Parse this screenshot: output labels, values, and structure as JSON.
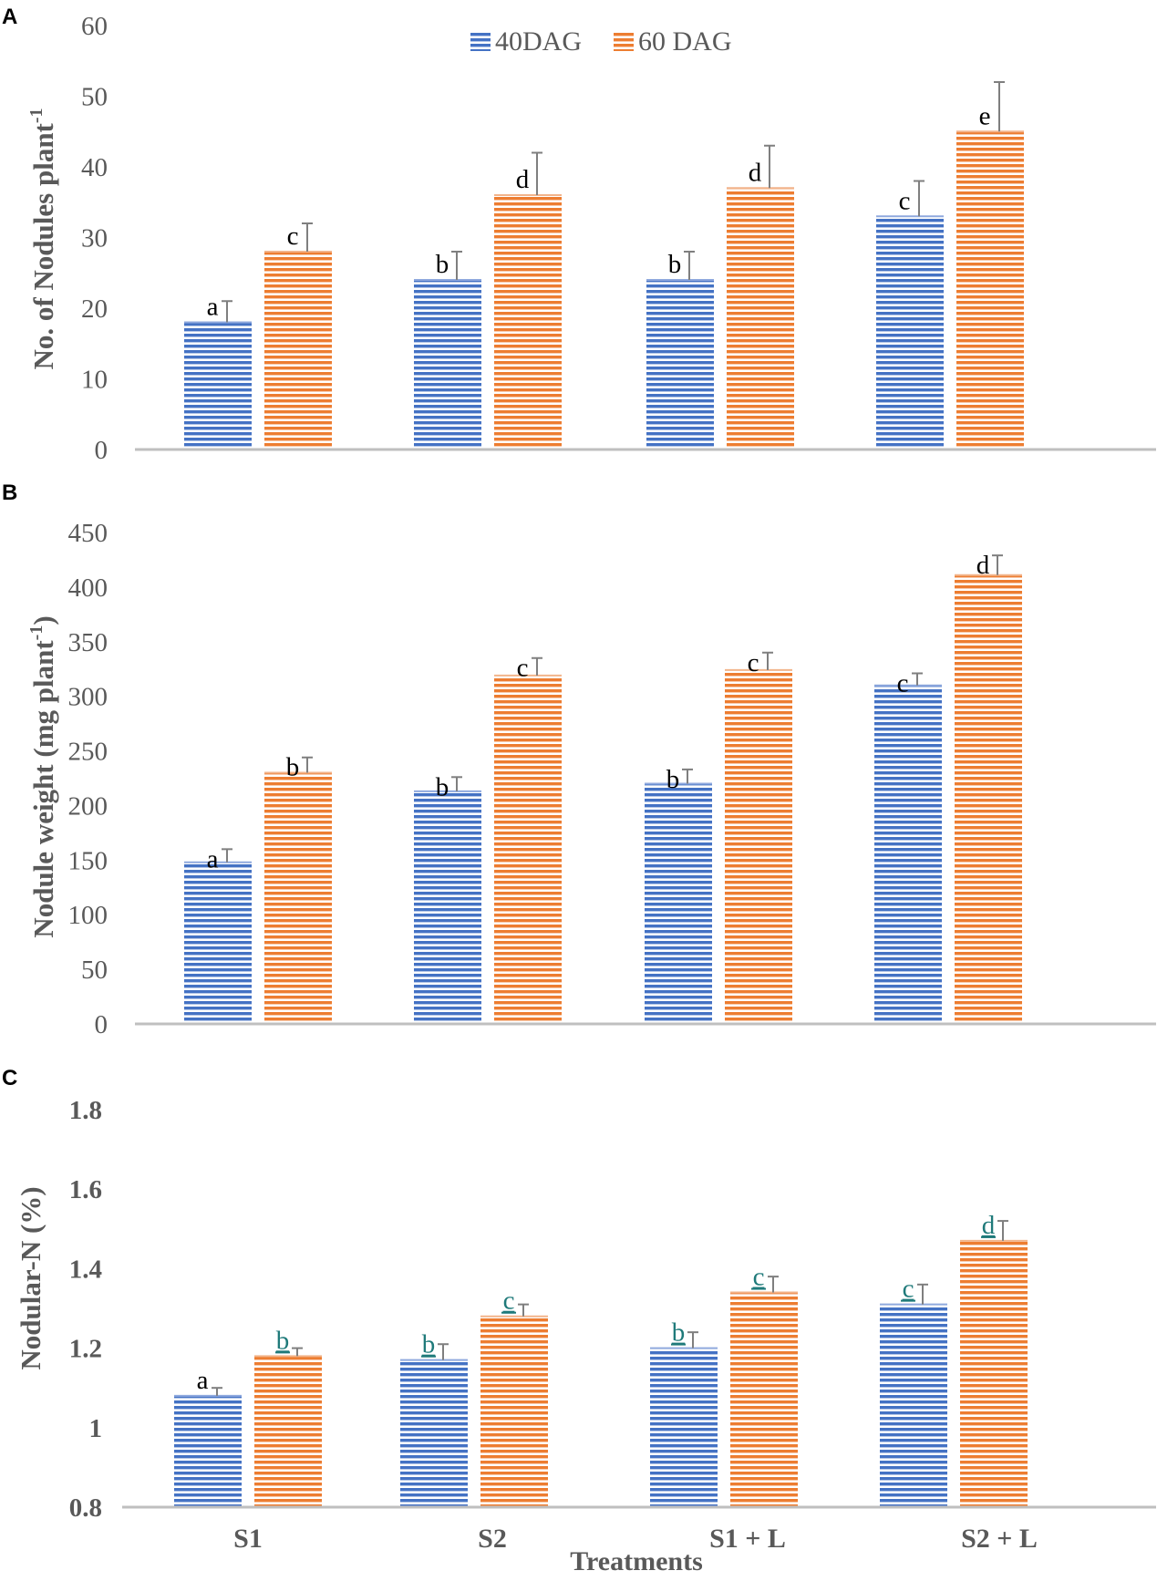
{
  "colors": {
    "series_40": "#4472C4",
    "series_60": "#ED7D31",
    "axis": "#BFBFBF",
    "text": "#595959",
    "sig_teal": "#1F7A7A"
  },
  "legend": {
    "items": [
      "40DAG",
      "60 DAG"
    ]
  },
  "x_title": "Treatments",
  "chart_data": [
    {
      "panel": "A",
      "type": "bar",
      "title": "",
      "xlabel": "",
      "ylabel_main": "No. of Nodules plant",
      "ylabel_sup": "-1",
      "ylabel_tail": "",
      "categories": [
        "S1",
        "S2",
        "S1 + L",
        "S2 + L"
      ],
      "ylim": [
        0,
        60
      ],
      "yticks": [
        0,
        10,
        20,
        30,
        40,
        50,
        60
      ],
      "ytick_labels": [
        "0",
        "10",
        "20",
        "30",
        "40",
        "50",
        "60"
      ],
      "tick_bold": false,
      "series": [
        {
          "name": "40DAG",
          "values": [
            18,
            24,
            24,
            33
          ],
          "errors": [
            3,
            4,
            4,
            5
          ],
          "sig": [
            "a",
            "b",
            "b",
            "c"
          ]
        },
        {
          "name": "60 DAG",
          "values": [
            28,
            36,
            37,
            45
          ],
          "errors": [
            4,
            6,
            6,
            7
          ],
          "sig": [
            "c",
            "d",
            "d",
            "e"
          ]
        }
      ]
    },
    {
      "panel": "B",
      "type": "bar",
      "title": "",
      "xlabel": "",
      "ylabel_main": "Nodule weight (mg plant",
      "ylabel_sup": "-1",
      "ylabel_tail": ")",
      "categories": [
        "S1",
        "S2",
        "S1 + L",
        "S2 + L"
      ],
      "ylim": [
        0,
        450
      ],
      "yticks": [
        0,
        50,
        100,
        150,
        200,
        250,
        300,
        350,
        400,
        450
      ],
      "ytick_labels": [
        "0",
        "50",
        "100",
        "150",
        "200",
        "250",
        "300",
        "350",
        "400",
        "450"
      ],
      "tick_bold": false,
      "series": [
        {
          "name": "40DAG",
          "values": [
            148,
            213,
            220,
            310
          ],
          "errors": [
            12,
            13,
            13,
            11
          ],
          "sig": [
            "a",
            "b",
            "b",
            "c"
          ]
        },
        {
          "name": "60 DAG",
          "values": [
            230,
            319,
            324,
            411
          ],
          "errors": [
            14,
            16,
            16,
            18
          ],
          "sig": [
            "b",
            "c",
            "c",
            "d"
          ]
        }
      ]
    },
    {
      "panel": "C",
      "type": "bar",
      "title": "",
      "xlabel": "Treatments",
      "ylabel_main": "Nodular-N (%)",
      "ylabel_sup": "",
      "ylabel_tail": "",
      "categories": [
        "S1",
        "S2",
        "S1 + L",
        "S2 + L"
      ],
      "ylim": [
        0.8,
        1.8
      ],
      "yticks": [
        0.8,
        1.0,
        1.2,
        1.4,
        1.6,
        1.8
      ],
      "ytick_labels": [
        "0.8",
        "1",
        "1.2",
        "1.4",
        "1.6",
        "1.8"
      ],
      "tick_bold": true,
      "series": [
        {
          "name": "40DAG",
          "values": [
            1.08,
            1.17,
            1.2,
            1.31
          ],
          "errors": [
            0.02,
            0.04,
            0.04,
            0.05
          ],
          "sig": [
            "a",
            "b",
            "b",
            "c"
          ],
          "sig_teal": [
            false,
            true,
            true,
            true
          ]
        },
        {
          "name": "60 DAG",
          "values": [
            1.18,
            1.28,
            1.34,
            1.47
          ],
          "errors": [
            0.02,
            0.03,
            0.04,
            0.05
          ],
          "sig": [
            "b",
            "c",
            "c",
            "d"
          ],
          "sig_teal": [
            true,
            true,
            true,
            true
          ]
        }
      ]
    }
  ]
}
